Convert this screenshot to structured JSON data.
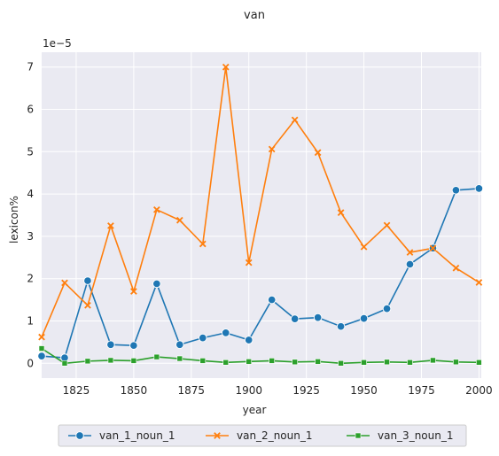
{
  "chart_data": {
    "type": "line",
    "title": "van",
    "xlabel": "year",
    "ylabel": "lexicon%",
    "y_multiplier": "1e−5",
    "xlim": [
      1810,
      2001
    ],
    "ylim": [
      -0.35,
      7.35
    ],
    "x_ticks": [
      1825,
      1850,
      1875,
      1900,
      1925,
      1950,
      1975,
      2000
    ],
    "y_ticks": [
      0,
      1,
      2,
      3,
      4,
      5,
      6,
      7
    ],
    "grid": true,
    "legend_position": "bottom-center",
    "x": [
      1810,
      1820,
      1830,
      1840,
      1850,
      1860,
      1870,
      1880,
      1890,
      1900,
      1910,
      1920,
      1930,
      1940,
      1950,
      1960,
      1970,
      1980,
      1990,
      2000
    ],
    "series": [
      {
        "name": "van_1_noun_1",
        "color": "#1f77b4",
        "marker": "circle",
        "values": [
          0.17,
          0.13,
          1.95,
          0.44,
          0.42,
          1.88,
          0.44,
          0.6,
          0.72,
          0.55,
          1.5,
          1.05,
          1.08,
          0.87,
          1.06,
          1.29,
          2.34,
          2.72,
          4.09,
          4.13
        ]
      },
      {
        "name": "van_2_noun_1",
        "color": "#ff7f0e",
        "marker": "x",
        "values": [
          0.62,
          1.9,
          1.37,
          3.25,
          1.7,
          3.63,
          3.38,
          2.82,
          7.0,
          2.38,
          5.06,
          5.75,
          4.98,
          3.56,
          2.75,
          3.26,
          2.62,
          2.72,
          2.25,
          1.91
        ]
      },
      {
        "name": "van_3_noun_1",
        "color": "#2ca02c",
        "marker": "square",
        "values": [
          0.35,
          0.0,
          0.05,
          0.07,
          0.06,
          0.15,
          0.11,
          0.06,
          0.02,
          0.04,
          0.06,
          0.03,
          0.04,
          0.0,
          0.02,
          0.03,
          0.02,
          0.07,
          0.03,
          0.02
        ]
      }
    ]
  }
}
